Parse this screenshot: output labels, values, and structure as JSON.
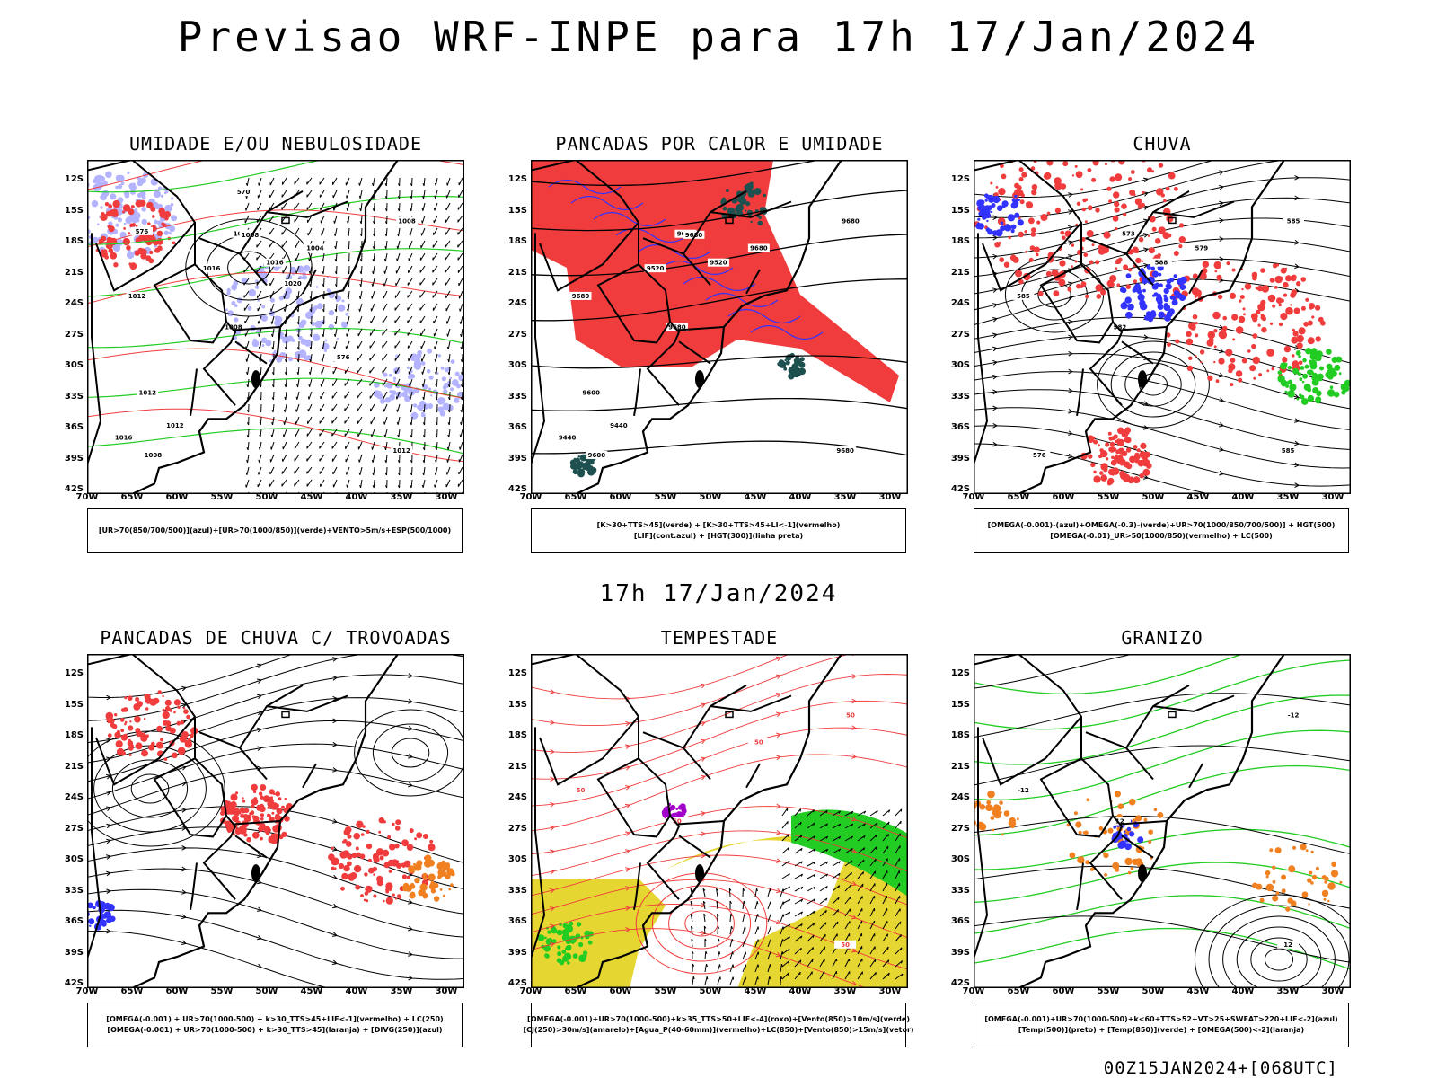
{
  "title": "Previsao WRF-INPE  para 17h 17/Jan/2024",
  "mid_title": "17h 17/Jan/2024",
  "footer": "00Z15JAN2024+[068UTC]",
  "lat_labels": [
    "12S",
    "15S",
    "18S",
    "21S",
    "24S",
    "27S",
    "30S",
    "33S",
    "36S",
    "39S",
    "42S"
  ],
  "lon_labels": [
    "70W",
    "65W",
    "60W",
    "55W",
    "50W",
    "45W",
    "40W",
    "35W",
    "30W"
  ],
  "colors": {
    "red": "#f03c3c",
    "blue": "#3333ff",
    "green": "#22cc22",
    "lavender": "#b3b3ff",
    "dark_teal": "#1f5050",
    "yellow": "#e6d632",
    "orange": "#f08020",
    "purple": "#a000c8"
  },
  "panels": [
    {
      "title": "UMIDADE E/OU NEBULOSIDADE",
      "legend": [
        "[UR>70(850/700/500)](azul)+[UR>70(1000/850)](verde)+VENTO>5m/s+ESP(500/1000)"
      ],
      "contour_labels": [
        "1012",
        "1012",
        "1008",
        "1008",
        "1004",
        "1008",
        "1012",
        "1016",
        "1012",
        "1016",
        "1016",
        "1012",
        "1008",
        "1020",
        "576",
        "576",
        "570"
      ]
    },
    {
      "title": "PANCADAS POR CALOR E UMIDADE",
      "legend": [
        "[K>30+TTS>45](verde) + [K>30+TTS>45+LI<-1](vermelho)",
        "[LIF](cont.azul) + [HGT(300)](linha preta)"
      ],
      "contour_labels": [
        "9680",
        "9680",
        "9680",
        "9680",
        "9680",
        "9600",
        "9600",
        "9520",
        "9600",
        "9520",
        "9440",
        "9440",
        "9680"
      ]
    },
    {
      "title": "CHUVA",
      "legend": [
        "[OMEGA(-0.001)-(azul)+OMEGA(-0.3)-(verde)+UR>70(1000/850/700/500)] + HGT(500)",
        "[OMEGA(-0.01)_UR>50(1000/850)(vermelho) + LC(500)"
      ],
      "contour_labels": [
        "585",
        "585",
        "585",
        "582",
        "579",
        "576",
        "573",
        "588"
      ]
    },
    {
      "title": "PANCADAS DE CHUVA C/ TROVOADAS",
      "legend": [
        "[OMEGA(-0.001) + UR>70(1000-500) + k>30_TTS>45+LIF<-1](vermelho) + LC(250)",
        "[OMEGA(-0.001) + UR>70(1000-500) + k>30_TTS>45](laranja) + [DIVG(250)](azul)"
      ],
      "contour_labels": []
    },
    {
      "title": "TEMPESTADE",
      "legend": [
        "[OMEGA(-0.001)+UR>70(1000-500)+k>35_TTS>50+LIF<-4](roxo)+[Vento(850)>10m/s](verde)",
        "[CJ(250)>30m/s](amarelo)+[Agua_P(40-60mm)](vermelho)+LC(850)+[Vento(850)>15m/s](vetor)"
      ],
      "contour_labels": [
        "50",
        "50",
        "50",
        "50",
        "50"
      ]
    },
    {
      "title": "GRANIZO",
      "legend": [
        "[OMEGA(-0.001)+UR>70(1000-500)+k<60+TTS>52+VT>25+SWEAT>220+LIF<-2](azul)",
        "[Temp(500)](preto) + [Temp(850)](verde) + [OMEGA(500)<-2](laranja)"
      ],
      "contour_labels": [
        "12",
        "-12",
        "-12",
        "12"
      ]
    }
  ]
}
